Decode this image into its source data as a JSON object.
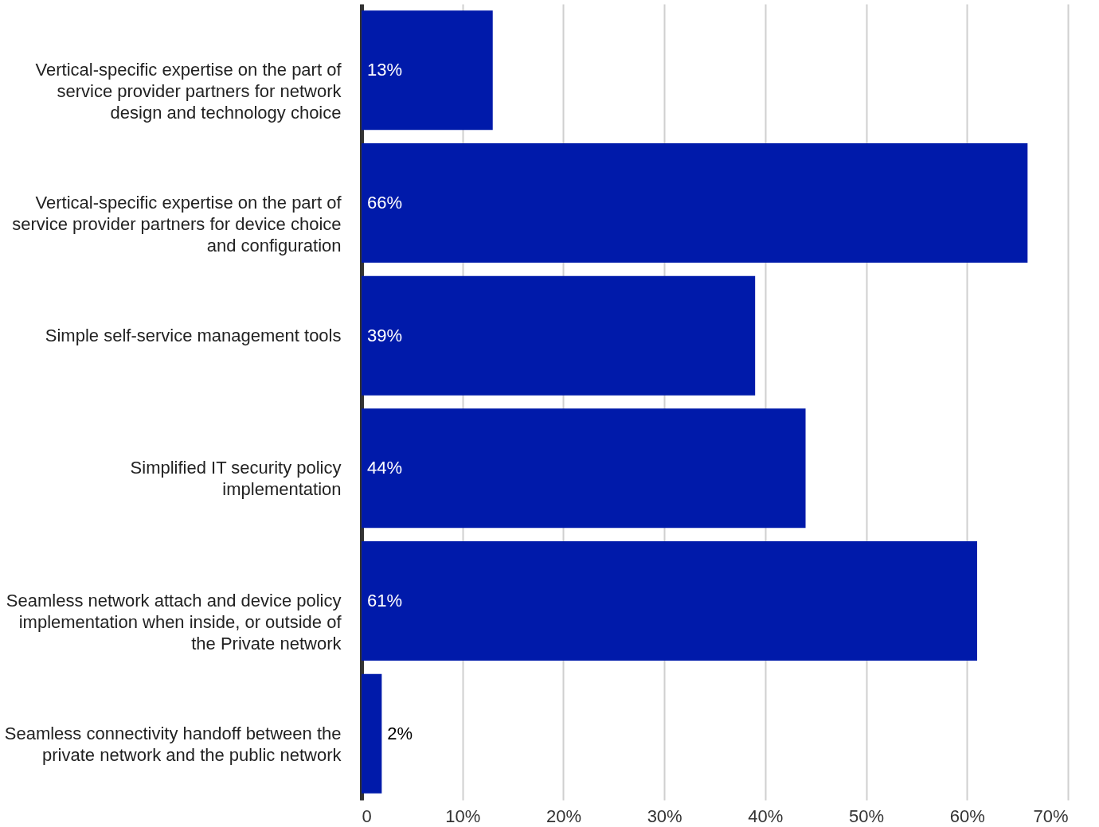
{
  "chart_data": {
    "type": "bar",
    "orientation": "horizontal",
    "categories": [
      "Vertical-specific expertise on the part of service provider partners for network design and technology choice",
      "Vertical-specific expertise on the part of service provider partners for device choice and configuration",
      "Simple self-service management tools",
      "Simplified IT security policy implementation",
      "Seamless network attach and device policy implementation when inside, or outside of the Private network",
      "Seamless connectivity handoff between the private network and the public network"
    ],
    "values": [
      13,
      66,
      39,
      44,
      61,
      2
    ],
    "value_labels": [
      "13%",
      "66%",
      "39%",
      "44%",
      "61%",
      "2%"
    ],
    "color": "#001aaa",
    "xlim": [
      0,
      70
    ],
    "xticks": [
      {
        "value": 0,
        "label": "0"
      },
      {
        "value": 10,
        "label": "10%"
      },
      {
        "value": 20,
        "label": "20%"
      },
      {
        "value": 30,
        "label": "30%"
      },
      {
        "value": 40,
        "label": "40%"
      },
      {
        "value": 50,
        "label": "50%"
      },
      {
        "value": 60,
        "label": "60%"
      },
      {
        "value": 70,
        "label": "70%"
      }
    ],
    "grid": "x"
  }
}
